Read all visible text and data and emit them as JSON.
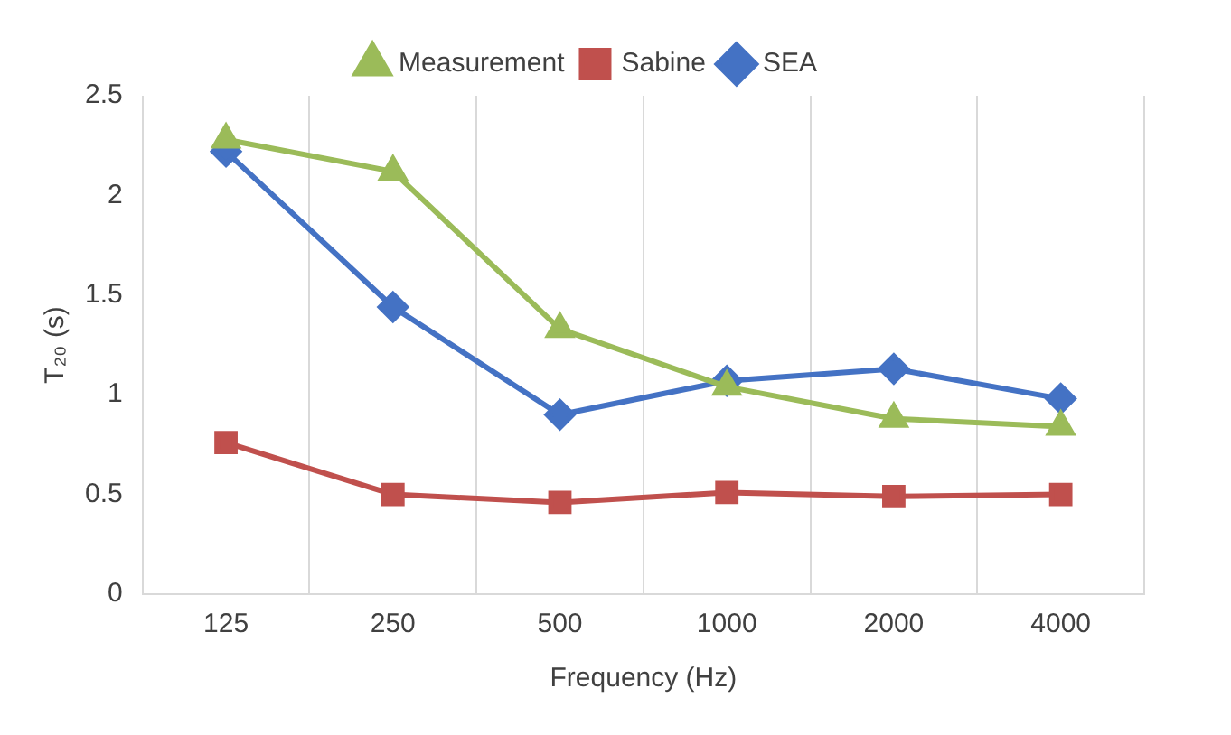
{
  "chart_data": {
    "type": "line",
    "xlabel": "Frequency (Hz)",
    "ylabel": "T₂₀ (s)",
    "categories": [
      "125",
      "250",
      "500",
      "1000",
      "2000",
      "4000"
    ],
    "series": [
      {
        "name": "SEA",
        "color": "#4472c4",
        "marker": "diamond",
        "values": [
          2.22,
          1.44,
          0.9,
          1.07,
          1.13,
          0.98
        ]
      },
      {
        "name": "Sabine",
        "color": "#c0504d",
        "marker": "square",
        "values": [
          0.76,
          0.5,
          0.46,
          0.51,
          0.49,
          0.5
        ]
      },
      {
        "name": "Measurement",
        "color": "#9bbb59",
        "marker": "triangle",
        "values": [
          2.28,
          2.12,
          1.33,
          1.04,
          0.88,
          0.84
        ]
      }
    ],
    "ylim": [
      0,
      2.5
    ],
    "yticks": [
      0,
      0.5,
      1,
      1.5,
      2,
      2.5
    ],
    "grid": "x",
    "legend": "top"
  }
}
